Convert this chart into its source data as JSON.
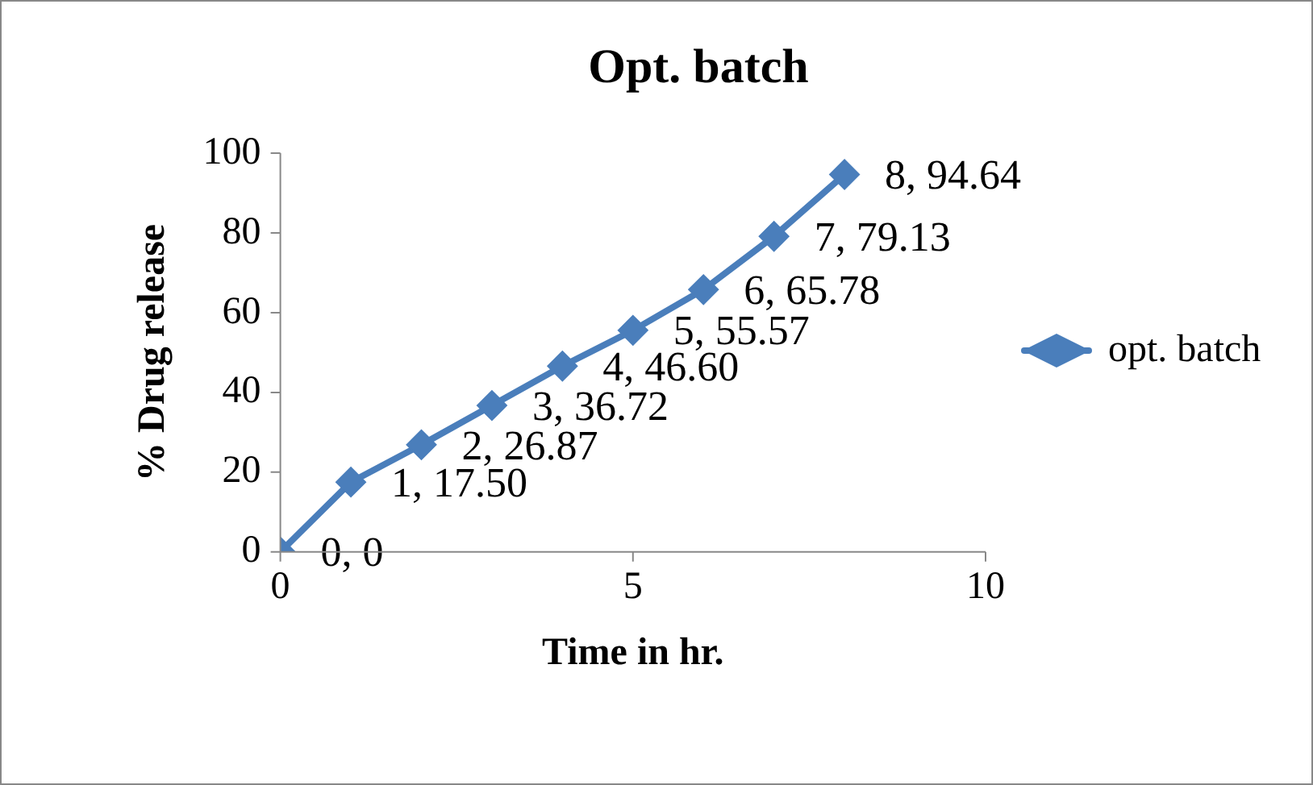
{
  "chart_data": {
    "type": "line",
    "title": "Opt. batch",
    "xlabel": "Time in hr.",
    "ylabel": "% Drug release",
    "x": [
      0,
      1,
      2,
      3,
      4,
      5,
      6,
      7,
      8
    ],
    "series": [
      {
        "name": "opt. batch",
        "color": "#4a7ebb",
        "values": [
          0,
          17.5,
          26.87,
          36.72,
          46.6,
          55.57,
          65.78,
          79.13,
          94.64
        ],
        "value_labels": [
          "0, 0",
          "1, 17.50",
          "2, 26.87",
          "3, 36.72",
          "4, 46.60",
          "5, 55.57",
          "6, 65.78",
          "7, 79.13",
          "8, 94.64"
        ]
      }
    ],
    "xlim": [
      0,
      10
    ],
    "xticks": [
      0,
      5,
      10
    ],
    "ylim": [
      0,
      100
    ],
    "yticks": [
      0,
      20,
      40,
      60,
      80,
      100
    ],
    "grid": false,
    "legend": "right",
    "marker": "diamond",
    "line_style": "solid"
  }
}
